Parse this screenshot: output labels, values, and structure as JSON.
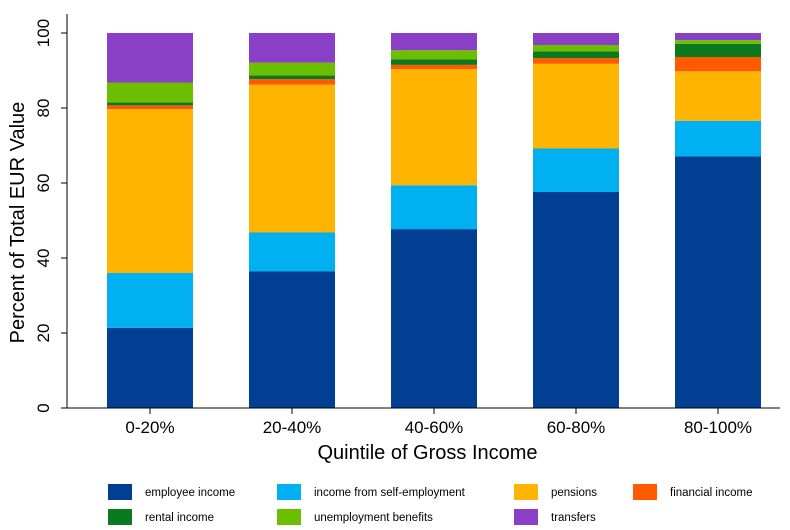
{
  "chart_data": {
    "type": "bar",
    "stacked": true,
    "xlabel": "Quintile of Gross Income",
    "ylabel": "Percent of Total EUR Value",
    "ylim": [
      0,
      100
    ],
    "yticks": [
      "0",
      "20",
      "40",
      "60",
      "80",
      "100"
    ],
    "categories": [
      "0-20%",
      "20-40%",
      "40-60%",
      "60-80%",
      "80-100%"
    ],
    "legend_position": "bottom",
    "series": [
      {
        "name": "employee income",
        "color": "#003F91",
        "values": [
          21.4,
          36.4,
          47.7,
          57.6,
          67.1
        ]
      },
      {
        "name": "income from self-employment",
        "color": "#00B0F0",
        "values": [
          14.6,
          10.4,
          11.7,
          11.6,
          9.5
        ]
      },
      {
        "name": "pensions",
        "color": "#FFB400",
        "values": [
          43.7,
          39.4,
          31.0,
          22.6,
          13.2
        ]
      },
      {
        "name": "financial income",
        "color": "#FF5A00",
        "values": [
          1.0,
          1.5,
          1.1,
          1.5,
          3.8
        ]
      },
      {
        "name": "rental income",
        "color": "#0B7A1F",
        "values": [
          0.8,
          1.0,
          1.5,
          1.8,
          3.5
        ]
      },
      {
        "name": "unemployment benefits",
        "color": "#6BBF00",
        "values": [
          5.3,
          3.4,
          2.4,
          1.7,
          1.0
        ]
      },
      {
        "name": "transfers",
        "color": "#8A3FC7",
        "values": [
          13.2,
          7.9,
          4.6,
          3.2,
          1.9
        ]
      }
    ]
  }
}
